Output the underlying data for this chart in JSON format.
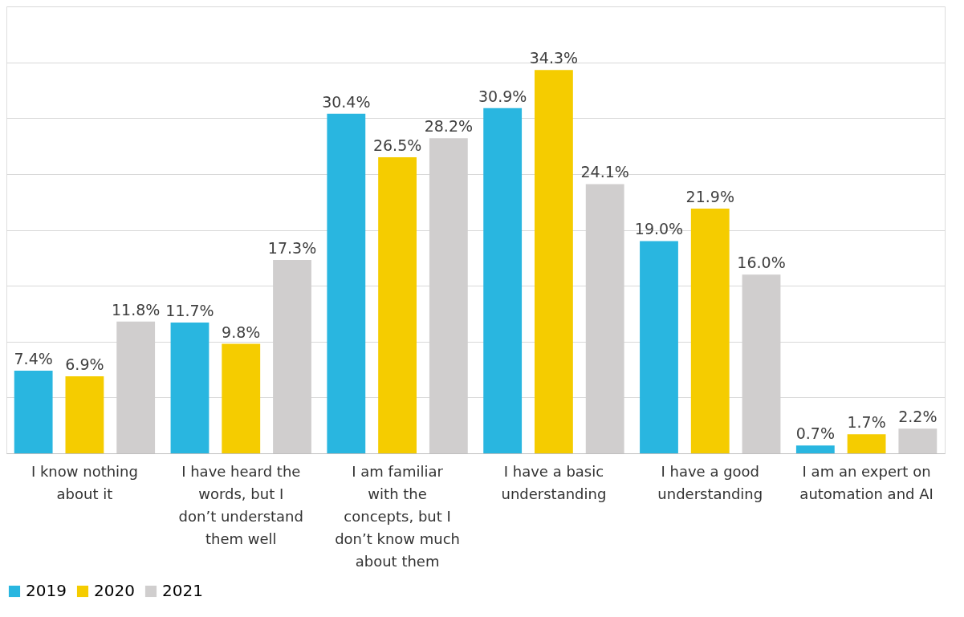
{
  "chart_data": {
    "type": "bar",
    "categories": [
      "I know nothing about it",
      "I have heard the words, but I don’t understand them well",
      "I am familiar with the concepts, but I don’t know much about them",
      "I have a basic understanding",
      "I have a good understanding",
      "I am an expert on automation and AI"
    ],
    "series": [
      {
        "name": "2019",
        "color": "#29b6e0",
        "values": [
          7.4,
          11.7,
          30.4,
          30.9,
          19.0,
          0.7
        ],
        "value_labels": [
          "7.4%",
          "11.7%",
          "30.4%",
          "30.9%",
          "19.0%",
          "0.7%"
        ]
      },
      {
        "name": "2020",
        "color": "#f5cc00",
        "values": [
          6.9,
          9.8,
          26.5,
          34.3,
          21.9,
          1.7
        ],
        "value_labels": [
          "6.9%",
          "9.8%",
          "26.5%",
          "34.3%",
          "21.9%",
          "1.7%"
        ]
      },
      {
        "name": "2021",
        "color": "#d0cece",
        "values": [
          11.8,
          17.3,
          28.2,
          24.1,
          16.0,
          2.2
        ],
        "value_labels": [
          "11.8%",
          "17.3%",
          "28.2%",
          "24.1%",
          "16.0%",
          "2.2%"
        ]
      }
    ],
    "ylim": [
      0,
      40
    ],
    "yticks": [
      {
        "value": 0,
        "label": null
      },
      {
        "value": 5,
        "label": null
      },
      {
        "value": 10,
        "label": null
      },
      {
        "value": 15,
        "label": null
      },
      {
        "value": 20,
        "label": null
      },
      {
        "value": 25,
        "label": null
      },
      {
        "value": 30,
        "label": null
      },
      {
        "value": 35,
        "label": null
      },
      {
        "value": 40,
        "label": null
      }
    ],
    "tick_labels": "x",
    "grid": "y",
    "legend": "bottom"
  }
}
